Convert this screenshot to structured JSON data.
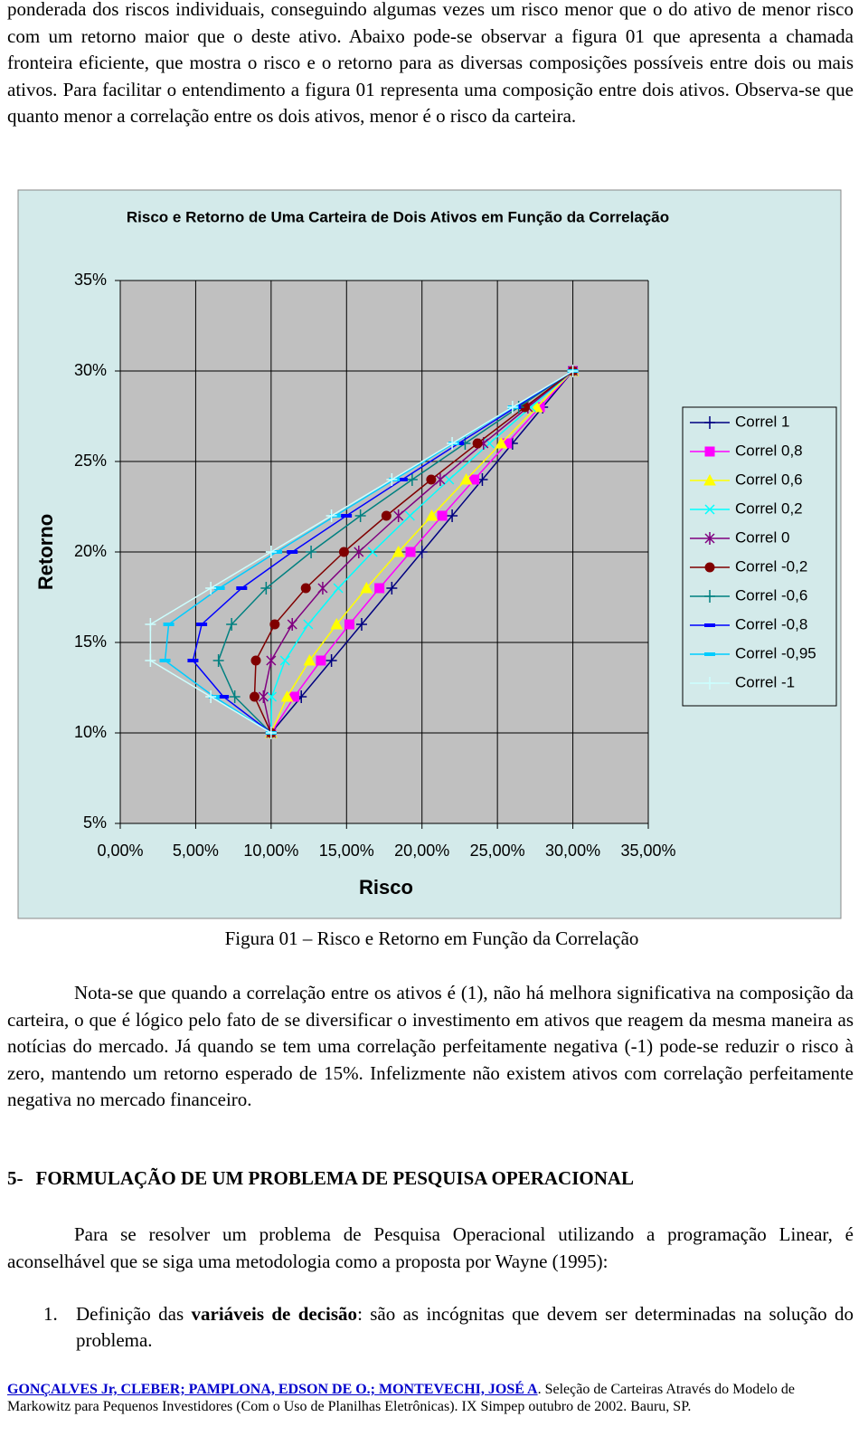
{
  "intro_paragraph": "ponderada dos riscos individuais, conseguindo algumas vezes um risco menor que o do ativo de menor risco com um retorno maior que o deste ativo. Abaixo pode-se observar a figura 01 que apresenta a chamada fronteira eficiente, que mostra o risco e o retorno para as diversas composições possíveis entre dois ou mais ativos. Para facilitar o entendimento a figura 01 representa uma composição entre dois ativos. Observa-se que quanto menor a correlação entre os dois ativos, menor é o risco da carteira.",
  "chart_data": {
    "type": "line",
    "title": "Risco e Retorno de Uma Carteira de Dois Ativos em Função da Correlação",
    "x_label": "Risco",
    "y_label": "Retorno",
    "xlim": [
      0,
      35
    ],
    "ylim": [
      5,
      35
    ],
    "xticks": [
      {
        "value": 0,
        "label": "0,00%"
      },
      {
        "value": 5,
        "label": "5,00%"
      },
      {
        "value": 10,
        "label": "10,00%"
      },
      {
        "value": 15,
        "label": "15,00%"
      },
      {
        "value": 20,
        "label": "20,00%"
      },
      {
        "value": 25,
        "label": "25,00%"
      },
      {
        "value": 30,
        "label": "30,00%"
      },
      {
        "value": 35,
        "label": "35,00%"
      }
    ],
    "yticks": [
      {
        "value": 5,
        "label": "5%"
      },
      {
        "value": 10,
        "label": "10%"
      },
      {
        "value": 15,
        "label": "15%"
      },
      {
        "value": 20,
        "label": "20%"
      },
      {
        "value": 25,
        "label": "25%"
      },
      {
        "value": 30,
        "label": "30%"
      },
      {
        "value": 35,
        "label": "35%"
      }
    ],
    "grid": true,
    "legend": "right",
    "series": [
      {
        "name": "Correl 1",
        "color": "#000080",
        "marker": "plus",
        "x": [
          10,
          12,
          14,
          16,
          18,
          20,
          22,
          24,
          26,
          28,
          30
        ],
        "values": [
          10,
          12,
          14,
          16,
          18,
          20,
          22,
          24,
          26,
          28,
          30
        ]
      },
      {
        "name": "Correl 0,8",
        "color": "#ff00ff",
        "marker": "square",
        "x": [
          10,
          11.54,
          13.3,
          15.19,
          17.18,
          19.24,
          21.34,
          23.47,
          25.63,
          27.81,
          30
        ],
        "values": [
          10,
          12,
          14,
          16,
          18,
          20,
          22,
          24,
          26,
          28,
          30
        ]
      },
      {
        "name": "Correl 0,6",
        "color": "#ffff00",
        "marker": "triangle",
        "x": [
          10,
          11.06,
          12.55,
          14.34,
          16.32,
          18.44,
          20.65,
          22.93,
          25.25,
          27.61,
          30
        ],
        "values": [
          10,
          12,
          14,
          16,
          18,
          20,
          22,
          24,
          26,
          28,
          30
        ]
      },
      {
        "name": "Correl 0,2",
        "color": "#00ffff",
        "marker": "cross",
        "x": [
          10,
          10.04,
          10.92,
          12.46,
          14.45,
          16.73,
          19.2,
          21.8,
          24.48,
          27.22,
          30
        ],
        "values": [
          10,
          12,
          14,
          16,
          18,
          20,
          22,
          24,
          26,
          28,
          30
        ]
      },
      {
        "name": "Correl 0",
        "color": "#800080",
        "marker": "star",
        "x": [
          10,
          9.49,
          10,
          11.4,
          13.42,
          15.81,
          18.44,
          21.21,
          24.08,
          27.02,
          30
        ],
        "values": [
          10,
          12,
          14,
          16,
          18,
          20,
          22,
          24,
          26,
          28,
          30
        ]
      },
      {
        "name": "Correl -0,2",
        "color": "#800000",
        "marker": "circle",
        "x": [
          10,
          8.9,
          8.99,
          10.24,
          12.3,
          14.83,
          17.64,
          20.61,
          23.68,
          26.82,
          30
        ],
        "values": [
          10,
          12,
          14,
          16,
          18,
          20,
          22,
          24,
          26,
          28,
          30
        ]
      },
      {
        "name": "Correl -0,6",
        "color": "#008080",
        "marker": "plus",
        "x": [
          10,
          7.59,
          6.51,
          7.38,
          9.67,
          12.65,
          15.92,
          19.35,
          22.86,
          26.41,
          30
        ],
        "values": [
          10,
          12,
          14,
          16,
          18,
          20,
          22,
          24,
          26,
          28,
          30
        ]
      },
      {
        "name": "Correl -0,8",
        "color": "#0000ff",
        "marker": "dash",
        "x": [
          10,
          6.84,
          4.82,
          5.4,
          8.05,
          11.4,
          14.99,
          18.69,
          22.43,
          26.21,
          30
        ],
        "values": [
          10,
          12,
          14,
          16,
          18,
          20,
          22,
          24,
          26,
          28,
          30
        ]
      },
      {
        "name": "Correl -0,95",
        "color": "#00ccff",
        "marker": "dash",
        "x": [
          10,
          6.22,
          2.97,
          3.21,
          6.57,
          10.37,
          14.25,
          18.17,
          22.11,
          26.05,
          30
        ],
        "values": [
          10,
          12,
          14,
          16,
          18,
          20,
          22,
          24,
          26,
          28,
          30
        ]
      },
      {
        "name": "Correl -1",
        "color": "#ccffff",
        "marker": "plus",
        "x": [
          10,
          6,
          2,
          2,
          6,
          10,
          14,
          18,
          22,
          26,
          30
        ],
        "values": [
          10,
          12,
          14,
          16,
          18,
          20,
          22,
          24,
          26,
          28,
          30
        ]
      }
    ]
  },
  "figure_caption": "Figura 01 – Risco e Retorno em Função da Correlação",
  "paragraph_2": "Nota-se que quando a correlação entre os ativos é (1), não há melhora significativa na composição da carteira, o que é lógico pelo fato de se diversificar o investimento em ativos que reagem da mesma maneira as notícias do mercado. Já quando se tem uma correlação perfeitamente negativa (-1) pode-se reduzir o risco à zero, mantendo um retorno esperado de 15%. Infelizmente não existem ativos com correlação perfeitamente negativa no mercado financeiro.",
  "section": {
    "number": "5-",
    "title": "FORMULAÇÃO DE UM PROBLEMA DE PESQUISA OPERACIONAL"
  },
  "section_paragraph": "Para se resolver um problema de Pesquisa Operacional utilizando a programação Linear, é aconselhável que se siga uma metodologia como a proposta por Wayne (1995):",
  "list": [
    {
      "number": "1.",
      "text_before": "Definição das ",
      "bold": "variáveis de decisão",
      "text_after": ": são as incógnitas que devem ser determinadas na solução do problema."
    }
  ],
  "footer": {
    "authors": "GONÇALVES Jr, CLEBER; PAMPLONA, EDSON DE O.; MONTEVECHI, JOSÉ A",
    "citation": ". Seleção de Carteiras Através do Modelo de Markowitz para Pequenos Investidores (Com o Uso de Planilhas Eletrônicas). IX Simpep outubro de 2002. Bauru, SP."
  }
}
